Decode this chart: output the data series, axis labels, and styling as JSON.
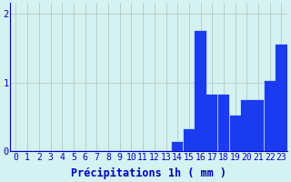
{
  "bar_heights": [
    0,
    0,
    0,
    0,
    0,
    0,
    0,
    0,
    0,
    0,
    0,
    0,
    0,
    0,
    0.14,
    0.32,
    1.75,
    0.82,
    0.82,
    0.52,
    0.75,
    0.75,
    1.02,
    1.55
  ],
  "bar_color": "#1a3cee",
  "bg_color": "#d4f2f2",
  "grid_color": "#b8c8c8",
  "axis_color": "#0000bb",
  "xlabel": "Précipitations 1h ( mm )",
  "ylim": [
    0,
    2.15
  ],
  "yticks": [
    0,
    1,
    2
  ],
  "xlabel_fontsize": 8.5,
  "tick_fontsize": 7.0
}
